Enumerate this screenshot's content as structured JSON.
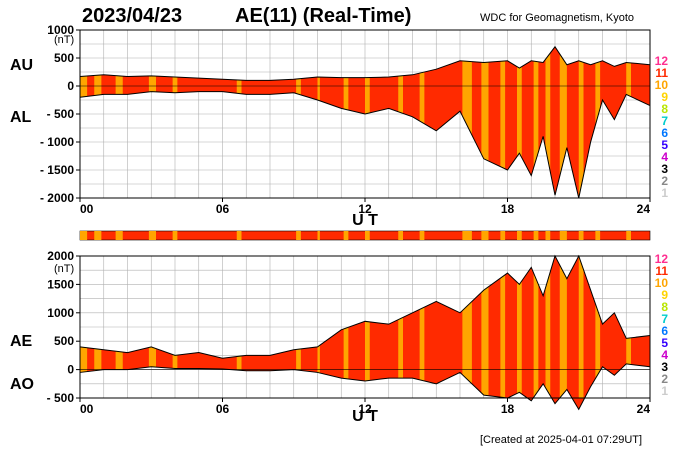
{
  "header": {
    "date": "2023/04/23",
    "title": "AE(11) (Real-Time)",
    "source": "WDC for Geomagnetism, Kyoto"
  },
  "footer": {
    "created": "[Created at 2025-04-01 07:29UT]"
  },
  "colors": {
    "fill_red": "#ff2a00",
    "fill_orange": "#ffa500",
    "outline": "#000000",
    "grid": "#b0b0b0"
  },
  "level_legend": [
    {
      "label": "12",
      "color": "#ff2e90"
    },
    {
      "label": "11",
      "color": "#ff2a00"
    },
    {
      "label": "10",
      "color": "#ffa500"
    },
    {
      "label": "9",
      "color": "#ffd400"
    },
    {
      "label": "8",
      "color": "#b9e600"
    },
    {
      "label": "7",
      "color": "#00cccc"
    },
    {
      "label": "6",
      "color": "#0077ff"
    },
    {
      "label": "5",
      "color": "#3300ff"
    },
    {
      "label": "4",
      "color": "#cc00cc"
    },
    {
      "label": "3",
      "color": "#000000"
    },
    {
      "label": "2",
      "color": "#888888"
    },
    {
      "label": "1",
      "color": "#cccccc"
    }
  ],
  "chart_data": [
    {
      "type": "area",
      "panel": "AU / AL",
      "series_labels": [
        "AU",
        "AL"
      ],
      "unit": "(nT)",
      "xlabel": "U T",
      "xlim": [
        0,
        24
      ],
      "x_ticks": [
        "00",
        "06",
        "12",
        "18",
        "24"
      ],
      "ylim": [
        -2000,
        1000
      ],
      "y_ticks": [
        "1000",
        "500",
        "0",
        "- 500",
        "- 1000",
        "- 1500",
        "- 2000"
      ],
      "series": [
        {
          "name": "AU",
          "x": [
            0,
            1,
            2,
            3,
            4,
            5,
            6,
            7,
            8,
            9,
            10,
            11,
            12,
            13,
            14,
            15,
            16,
            17,
            18,
            18.5,
            19,
            19.5,
            20,
            20.5,
            21,
            21.5,
            22,
            22.5,
            23,
            24
          ],
          "values": [
            170,
            200,
            170,
            180,
            160,
            140,
            120,
            100,
            100,
            120,
            160,
            150,
            150,
            160,
            200,
            300,
            450,
            420,
            450,
            320,
            450,
            420,
            700,
            380,
            450,
            380,
            450,
            350,
            420,
            380
          ]
        },
        {
          "name": "AL",
          "x": [
            0,
            1,
            2,
            3,
            4,
            5,
            6,
            7,
            8,
            9,
            10,
            11,
            12,
            13,
            14,
            15,
            16,
            17,
            18,
            18.5,
            19,
            19.5,
            20,
            20.5,
            21,
            21.5,
            22,
            22.5,
            23,
            24
          ],
          "values": [
            -200,
            -150,
            -150,
            -100,
            -120,
            -100,
            -100,
            -150,
            -150,
            -120,
            -250,
            -400,
            -500,
            -400,
            -550,
            -800,
            -450,
            -1300,
            -1500,
            -1200,
            -1600,
            -900,
            -1950,
            -1100,
            -2000,
            -1000,
            -250,
            -600,
            -150,
            -350
          ]
        }
      ]
    },
    {
      "type": "area",
      "panel": "AE / AO",
      "series_labels": [
        "AE",
        "AO"
      ],
      "unit": "(nT)",
      "xlabel": "U T",
      "xlim": [
        0,
        24
      ],
      "x_ticks": [
        "00",
        "06",
        "12",
        "18",
        "24"
      ],
      "ylim": [
        -500,
        2000
      ],
      "y_ticks": [
        "2000",
        "1500",
        "1000",
        "500",
        "0",
        "- 500"
      ],
      "series": [
        {
          "name": "AE",
          "x": [
            0,
            1,
            2,
            3,
            4,
            5,
            6,
            7,
            8,
            9,
            10,
            11,
            12,
            13,
            14,
            15,
            16,
            17,
            18,
            18.5,
            19,
            19.5,
            20,
            20.5,
            21,
            21.5,
            22,
            22.5,
            23,
            24
          ],
          "values": [
            400,
            350,
            300,
            400,
            250,
            300,
            200,
            250,
            250,
            350,
            400,
            700,
            850,
            800,
            1000,
            1200,
            1000,
            1400,
            1700,
            1500,
            1800,
            1300,
            2000,
            1600,
            2000,
            1400,
            800,
            1000,
            550,
            600
          ]
        },
        {
          "name": "AO",
          "x": [
            0,
            1,
            2,
            3,
            4,
            5,
            6,
            7,
            8,
            9,
            10,
            11,
            12,
            13,
            14,
            15,
            16,
            17,
            18,
            18.5,
            19,
            19.5,
            20,
            20.5,
            21,
            21.5,
            22,
            22.5,
            23,
            24
          ],
          "values": [
            -50,
            0,
            0,
            50,
            20,
            20,
            10,
            -20,
            -20,
            0,
            -50,
            -150,
            -200,
            -150,
            -150,
            -250,
            -50,
            -450,
            -500,
            -400,
            -550,
            -250,
            -600,
            -350,
            -700,
            -300,
            50,
            -100,
            100,
            50
          ]
        }
      ]
    }
  ],
  "activity_bars": [
    {
      "start": 0.0,
      "end": 0.3,
      "level": "10"
    },
    {
      "start": 0.6,
      "end": 0.9,
      "level": "10"
    },
    {
      "start": 1.5,
      "end": 1.8,
      "level": "10"
    },
    {
      "start": 2.9,
      "end": 3.2,
      "level": "10"
    },
    {
      "start": 3.9,
      "end": 4.1,
      "level": "10"
    },
    {
      "start": 6.6,
      "end": 6.8,
      "level": "10"
    },
    {
      "start": 9.1,
      "end": 9.3,
      "level": "10"
    },
    {
      "start": 10.0,
      "end": 10.1,
      "level": "10"
    },
    {
      "start": 11.1,
      "end": 11.3,
      "level": "10"
    },
    {
      "start": 12.0,
      "end": 12.2,
      "level": "10"
    },
    {
      "start": 13.4,
      "end": 13.6,
      "level": "10"
    },
    {
      "start": 14.3,
      "end": 14.5,
      "level": "10"
    },
    {
      "start": 16.1,
      "end": 16.5,
      "level": "10"
    },
    {
      "start": 16.9,
      "end": 17.2,
      "level": "10"
    },
    {
      "start": 17.7,
      "end": 17.9,
      "level": "10"
    },
    {
      "start": 18.4,
      "end": 18.6,
      "level": "10"
    },
    {
      "start": 19.1,
      "end": 19.3,
      "level": "10"
    },
    {
      "start": 19.6,
      "end": 19.8,
      "level": "10"
    },
    {
      "start": 20.2,
      "end": 20.5,
      "level": "10"
    },
    {
      "start": 21.0,
      "end": 21.2,
      "level": "10"
    },
    {
      "start": 21.7,
      "end": 21.9,
      "level": "10"
    },
    {
      "start": 23.0,
      "end": 23.2,
      "level": "10"
    }
  ]
}
